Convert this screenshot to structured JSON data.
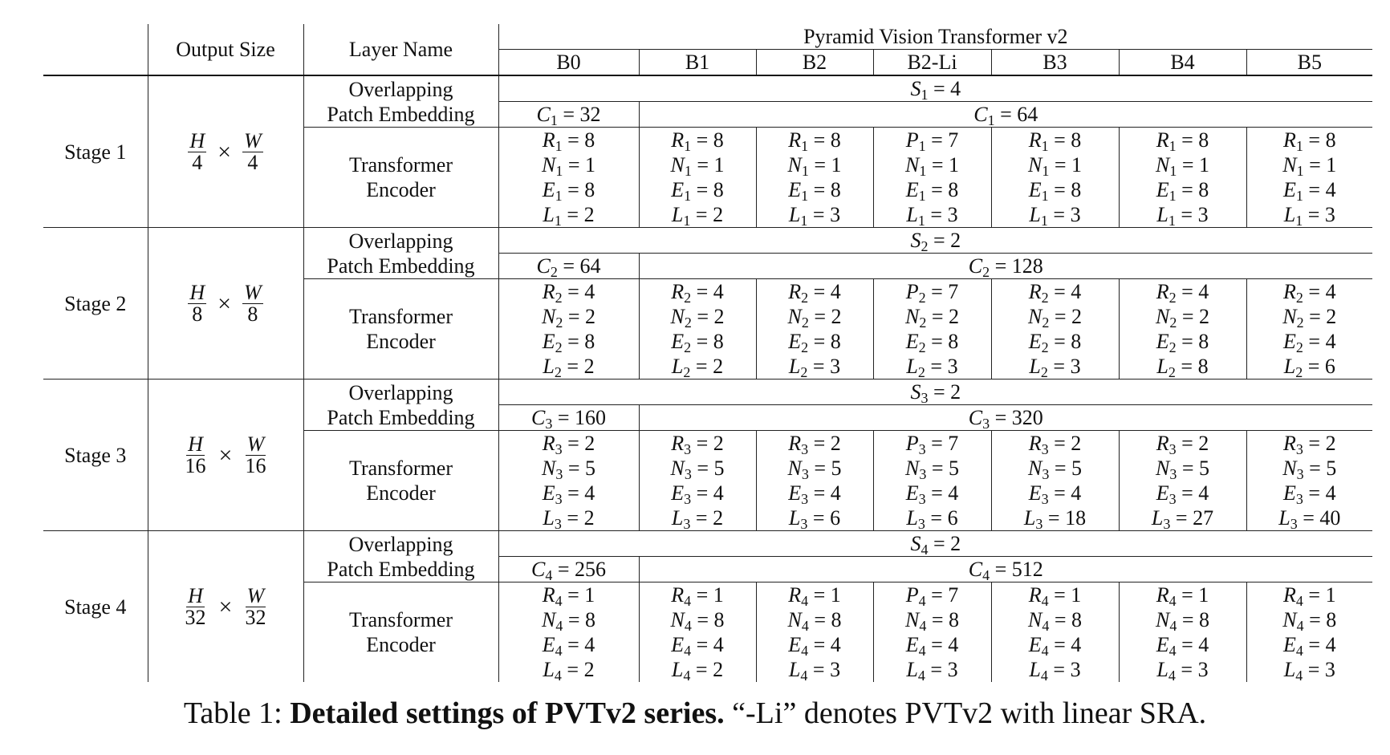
{
  "header": {
    "output_size": "Output Size",
    "layer_name": "Layer Name",
    "group_title": "Pyramid Vision Transformer v2",
    "models": [
      "B0",
      "B1",
      "B2",
      "B2-Li",
      "B3",
      "B4",
      "B5"
    ]
  },
  "layer_labels": {
    "patch_line1": "Overlapping",
    "patch_line2": "Patch Embedding",
    "enc_line1": "Transformer",
    "enc_line2": "Encoder"
  },
  "stages": [
    {
      "label": "Stage 1",
      "out_num_h": "H",
      "out_den_h": "4",
      "out_num_w": "W",
      "out_den_w": "4",
      "stride": {
        "sym": "S",
        "sub": "1",
        "val": "4"
      },
      "c_b0": {
        "sym": "C",
        "sub": "1",
        "val": "32"
      },
      "c_rest": {
        "sym": "C",
        "sub": "1",
        "val": "64"
      },
      "encoder": [
        [
          [
            "R",
            "1",
            "8"
          ],
          [
            "N",
            "1",
            "1"
          ],
          [
            "E",
            "1",
            "8"
          ],
          [
            "L",
            "1",
            "2"
          ]
        ],
        [
          [
            "R",
            "1",
            "8"
          ],
          [
            "N",
            "1",
            "1"
          ],
          [
            "E",
            "1",
            "8"
          ],
          [
            "L",
            "1",
            "2"
          ]
        ],
        [
          [
            "R",
            "1",
            "8"
          ],
          [
            "N",
            "1",
            "1"
          ],
          [
            "E",
            "1",
            "8"
          ],
          [
            "L",
            "1",
            "3"
          ]
        ],
        [
          [
            "P",
            "1",
            "7"
          ],
          [
            "N",
            "1",
            "1"
          ],
          [
            "E",
            "1",
            "8"
          ],
          [
            "L",
            "1",
            "3"
          ]
        ],
        [
          [
            "R",
            "1",
            "8"
          ],
          [
            "N",
            "1",
            "1"
          ],
          [
            "E",
            "1",
            "8"
          ],
          [
            "L",
            "1",
            "3"
          ]
        ],
        [
          [
            "R",
            "1",
            "8"
          ],
          [
            "N",
            "1",
            "1"
          ],
          [
            "E",
            "1",
            "8"
          ],
          [
            "L",
            "1",
            "3"
          ]
        ],
        [
          [
            "R",
            "1",
            "8"
          ],
          [
            "N",
            "1",
            "1"
          ],
          [
            "E",
            "1",
            "4"
          ],
          [
            "L",
            "1",
            "3"
          ]
        ]
      ]
    },
    {
      "label": "Stage 2",
      "out_num_h": "H",
      "out_den_h": "8",
      "out_num_w": "W",
      "out_den_w": "8",
      "stride": {
        "sym": "S",
        "sub": "2",
        "val": "2"
      },
      "c_b0": {
        "sym": "C",
        "sub": "2",
        "val": "64"
      },
      "c_rest": {
        "sym": "C",
        "sub": "2",
        "val": "128"
      },
      "encoder": [
        [
          [
            "R",
            "2",
            "4"
          ],
          [
            "N",
            "2",
            "2"
          ],
          [
            "E",
            "2",
            "8"
          ],
          [
            "L",
            "2",
            "2"
          ]
        ],
        [
          [
            "R",
            "2",
            "4"
          ],
          [
            "N",
            "2",
            "2"
          ],
          [
            "E",
            "2",
            "8"
          ],
          [
            "L",
            "2",
            "2"
          ]
        ],
        [
          [
            "R",
            "2",
            "4"
          ],
          [
            "N",
            "2",
            "2"
          ],
          [
            "E",
            "2",
            "8"
          ],
          [
            "L",
            "2",
            "3"
          ]
        ],
        [
          [
            "P",
            "2",
            "7"
          ],
          [
            "N",
            "2",
            "2"
          ],
          [
            "E",
            "2",
            "8"
          ],
          [
            "L",
            "2",
            "3"
          ]
        ],
        [
          [
            "R",
            "2",
            "4"
          ],
          [
            "N",
            "2",
            "2"
          ],
          [
            "E",
            "2",
            "8"
          ],
          [
            "L",
            "2",
            "3"
          ]
        ],
        [
          [
            "R",
            "2",
            "4"
          ],
          [
            "N",
            "2",
            "2"
          ],
          [
            "E",
            "2",
            "8"
          ],
          [
            "L",
            "2",
            "8"
          ]
        ],
        [
          [
            "R",
            "2",
            "4"
          ],
          [
            "N",
            "2",
            "2"
          ],
          [
            "E",
            "2",
            "4"
          ],
          [
            "L",
            "2",
            "6"
          ]
        ]
      ]
    },
    {
      "label": "Stage 3",
      "out_num_h": "H",
      "out_den_h": "16",
      "out_num_w": "W",
      "out_den_w": "16",
      "stride": {
        "sym": "S",
        "sub": "3",
        "val": "2"
      },
      "c_b0": {
        "sym": "C",
        "sub": "3",
        "val": "160"
      },
      "c_rest": {
        "sym": "C",
        "sub": "3",
        "val": "320"
      },
      "encoder": [
        [
          [
            "R",
            "3",
            "2"
          ],
          [
            "N",
            "3",
            "5"
          ],
          [
            "E",
            "3",
            "4"
          ],
          [
            "L",
            "3",
            "2"
          ]
        ],
        [
          [
            "R",
            "3",
            "2"
          ],
          [
            "N",
            "3",
            "5"
          ],
          [
            "E",
            "3",
            "4"
          ],
          [
            "L",
            "3",
            "2"
          ]
        ],
        [
          [
            "R",
            "3",
            "2"
          ],
          [
            "N",
            "3",
            "5"
          ],
          [
            "E",
            "3",
            "4"
          ],
          [
            "L",
            "3",
            "6"
          ]
        ],
        [
          [
            "P",
            "3",
            "7"
          ],
          [
            "N",
            "3",
            "5"
          ],
          [
            "E",
            "3",
            "4"
          ],
          [
            "L",
            "3",
            "6"
          ]
        ],
        [
          [
            "R",
            "3",
            "2"
          ],
          [
            "N",
            "3",
            "5"
          ],
          [
            "E",
            "3",
            "4"
          ],
          [
            "L",
            "3",
            "18"
          ]
        ],
        [
          [
            "R",
            "3",
            "2"
          ],
          [
            "N",
            "3",
            "5"
          ],
          [
            "E",
            "3",
            "4"
          ],
          [
            "L",
            "3",
            "27"
          ]
        ],
        [
          [
            "R",
            "3",
            "2"
          ],
          [
            "N",
            "3",
            "5"
          ],
          [
            "E",
            "3",
            "4"
          ],
          [
            "L",
            "3",
            "40"
          ]
        ]
      ]
    },
    {
      "label": "Stage 4",
      "out_num_h": "H",
      "out_den_h": "32",
      "out_num_w": "W",
      "out_den_w": "32",
      "stride": {
        "sym": "S",
        "sub": "4",
        "val": "2"
      },
      "c_b0": {
        "sym": "C",
        "sub": "4",
        "val": "256"
      },
      "c_rest": {
        "sym": "C",
        "sub": "4",
        "val": "512"
      },
      "encoder": [
        [
          [
            "R",
            "4",
            "1"
          ],
          [
            "N",
            "4",
            "8"
          ],
          [
            "E",
            "4",
            "4"
          ],
          [
            "L",
            "4",
            "2"
          ]
        ],
        [
          [
            "R",
            "4",
            "1"
          ],
          [
            "N",
            "4",
            "8"
          ],
          [
            "E",
            "4",
            "4"
          ],
          [
            "L",
            "4",
            "2"
          ]
        ],
        [
          [
            "R",
            "4",
            "1"
          ],
          [
            "N",
            "4",
            "8"
          ],
          [
            "E",
            "4",
            "4"
          ],
          [
            "L",
            "4",
            "3"
          ]
        ],
        [
          [
            "P",
            "4",
            "7"
          ],
          [
            "N",
            "4",
            "8"
          ],
          [
            "E",
            "4",
            "4"
          ],
          [
            "L",
            "4",
            "3"
          ]
        ],
        [
          [
            "R",
            "4",
            "1"
          ],
          [
            "N",
            "4",
            "8"
          ],
          [
            "E",
            "4",
            "4"
          ],
          [
            "L",
            "4",
            "3"
          ]
        ],
        [
          [
            "R",
            "4",
            "1"
          ],
          [
            "N",
            "4",
            "8"
          ],
          [
            "E",
            "4",
            "4"
          ],
          [
            "L",
            "4",
            "3"
          ]
        ],
        [
          [
            "R",
            "4",
            "1"
          ],
          [
            "N",
            "4",
            "8"
          ],
          [
            "E",
            "4",
            "4"
          ],
          [
            "L",
            "4",
            "3"
          ]
        ]
      ]
    }
  ],
  "caption": {
    "prefix": "Table 1: ",
    "bold": "Detailed settings of PVTv2 series.",
    "rest": " “-Li” denotes PVTv2 with linear SRA."
  }
}
